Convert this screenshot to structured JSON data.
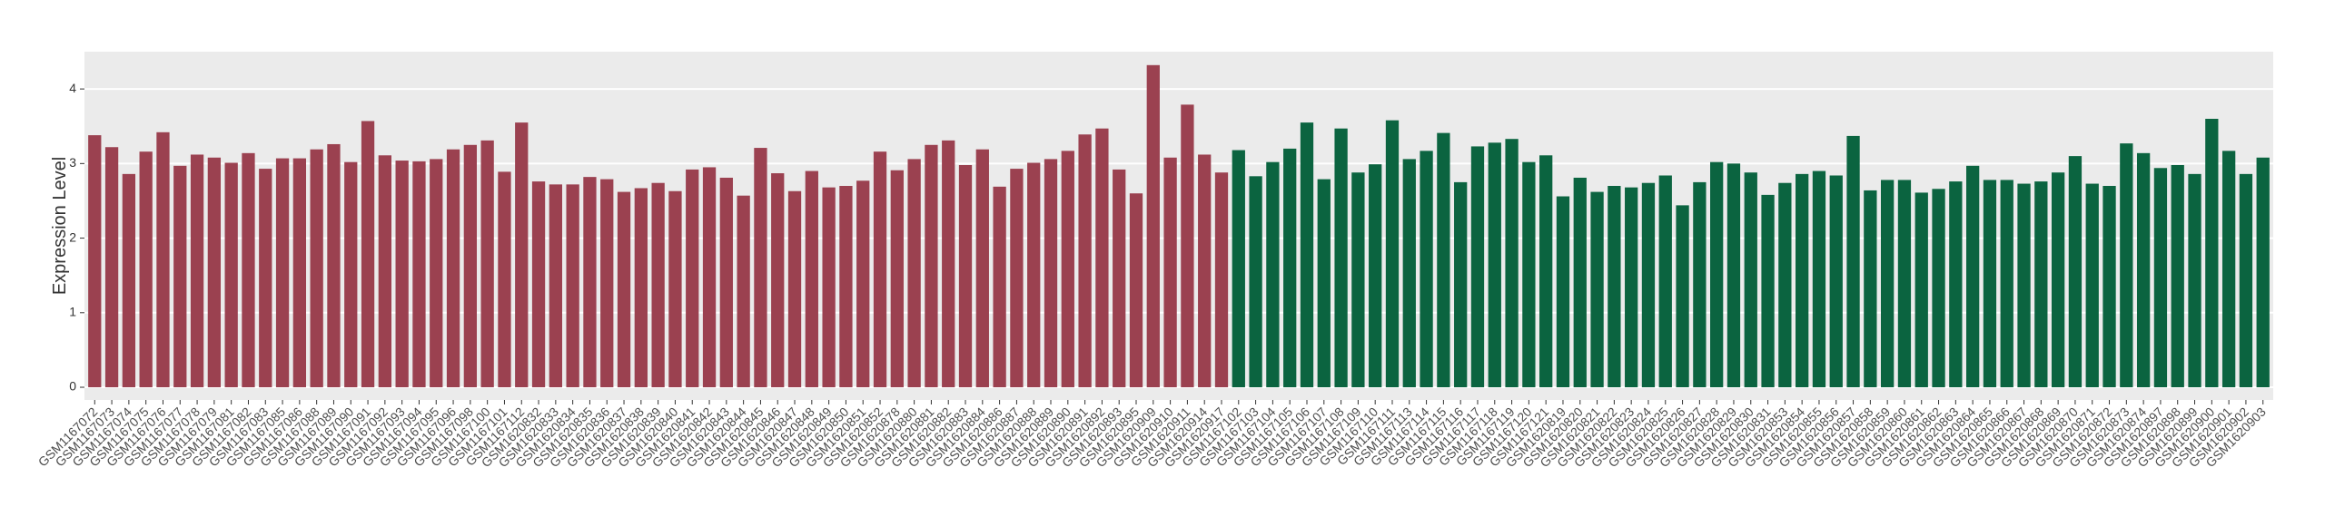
{
  "chart_data": {
    "type": "bar",
    "y_label": "Expression Level",
    "ylim": [
      -0.17,
      4.5
    ],
    "yticks": [
      0,
      1,
      2,
      3,
      4
    ],
    "grid": true,
    "background": "#ebebeb",
    "series": [
      {
        "color": "#9b4150",
        "categories": [
          "GSM1167072",
          "GSM1167073",
          "GSM1167074",
          "GSM1167075",
          "GSM1167076",
          "GSM1167077",
          "GSM1167078",
          "GSM1167079",
          "GSM1167081",
          "GSM1167082",
          "GSM1167083",
          "GSM1167085",
          "GSM1167086",
          "GSM1167088",
          "GSM1167089",
          "GSM1167090",
          "GSM1167091",
          "GSM1167092",
          "GSM1167093",
          "GSM1167094",
          "GSM1167095",
          "GSM1167096",
          "GSM1167098",
          "GSM1167100",
          "GSM1167101",
          "GSM1167112",
          "GSM1620832",
          "GSM1620833",
          "GSM1620834",
          "GSM1620835",
          "GSM1620836",
          "GSM1620837",
          "GSM1620838",
          "GSM1620839",
          "GSM1620840",
          "GSM1620841",
          "GSM1620842",
          "GSM1620843",
          "GSM1620844",
          "GSM1620845",
          "GSM1620846",
          "GSM1620847",
          "GSM1620848",
          "GSM1620849",
          "GSM1620850",
          "GSM1620851",
          "GSM1620852",
          "GSM1620878",
          "GSM1620880",
          "GSM1620881",
          "GSM1620882",
          "GSM1620883",
          "GSM1620884",
          "GSM1620886",
          "GSM1620887",
          "GSM1620888",
          "GSM1620889",
          "GSM1620890",
          "GSM1620891",
          "GSM1620892",
          "GSM1620893",
          "GSM1620895",
          "GSM1620909",
          "GSM1620910",
          "GSM1620911",
          "GSM1620914",
          "GSM1620917"
        ],
        "values": [
          3.38,
          3.22,
          2.86,
          3.16,
          3.42,
          2.97,
          3.12,
          3.08,
          3.01,
          3.14,
          2.93,
          3.07,
          3.07,
          3.19,
          3.26,
          3.02,
          3.57,
          3.11,
          3.04,
          3.03,
          3.06,
          3.19,
          3.25,
          3.31,
          2.89,
          3.55,
          2.76,
          2.72,
          2.72,
          2.82,
          2.79,
          2.62,
          2.67,
          2.74,
          2.63,
          2.92,
          2.95,
          2.81,
          2.57,
          3.21,
          2.87,
          2.63,
          2.9,
          2.68,
          2.7,
          2.77,
          3.16,
          2.91,
          3.06,
          3.25,
          3.31,
          2.98,
          3.19,
          2.69,
          2.93,
          3.01,
          3.06,
          3.17,
          3.39,
          3.47,
          2.92,
          2.6,
          4.32,
          3.08,
          3.79,
          3.12,
          2.88
        ]
      },
      {
        "color": "#0b6440",
        "categories": [
          "GSM1167102",
          "GSM1167103",
          "GSM1167104",
          "GSM1167105",
          "GSM1167106",
          "GSM1167107",
          "GSM1167108",
          "GSM1167109",
          "GSM1167110",
          "GSM1167111",
          "GSM1167113",
          "GSM1167114",
          "GSM1167115",
          "GSM1167116",
          "GSM1167117",
          "GSM1167118",
          "GSM1167119",
          "GSM1167120",
          "GSM1167121",
          "GSM1620819",
          "GSM1620820",
          "GSM1620821",
          "GSM1620822",
          "GSM1620823",
          "GSM1620824",
          "GSM1620825",
          "GSM1620826",
          "GSM1620827",
          "GSM1620828",
          "GSM1620829",
          "GSM1620830",
          "GSM1620831",
          "GSM1620853",
          "GSM1620854",
          "GSM1620855",
          "GSM1620856",
          "GSM1620857",
          "GSM1620858",
          "GSM1620859",
          "GSM1620860",
          "GSM1620861",
          "GSM1620862",
          "GSM1620863",
          "GSM1620864",
          "GSM1620865",
          "GSM1620866",
          "GSM1620867",
          "GSM1620868",
          "GSM1620869",
          "GSM1620870",
          "GSM1620871",
          "GSM1620872",
          "GSM1620873",
          "GSM1620874",
          "GSM1620897",
          "GSM1620898",
          "GSM1620899",
          "GSM1620900",
          "GSM1620901",
          "GSM1620902",
          "GSM1620903"
        ],
        "values": [
          3.18,
          2.83,
          3.02,
          3.2,
          3.55,
          2.79,
          3.47,
          2.88,
          2.99,
          3.58,
          3.06,
          3.17,
          3.41,
          2.75,
          3.23,
          3.28,
          3.33,
          3.02,
          3.11,
          2.56,
          2.81,
          2.62,
          2.7,
          2.68,
          2.74,
          2.84,
          2.44,
          2.75,
          3.02,
          3.0,
          2.88,
          2.58,
          2.74,
          2.86,
          2.9,
          2.84,
          3.37,
          2.64,
          2.78,
          2.78,
          2.61,
          2.66,
          2.76,
          2.97,
          2.78,
          2.78,
          2.73,
          2.76,
          2.88,
          3.1,
          2.73,
          2.7,
          3.27,
          3.14,
          2.94,
          2.98,
          2.86,
          3.6,
          3.17,
          2.86,
          3.08
        ]
      }
    ]
  }
}
